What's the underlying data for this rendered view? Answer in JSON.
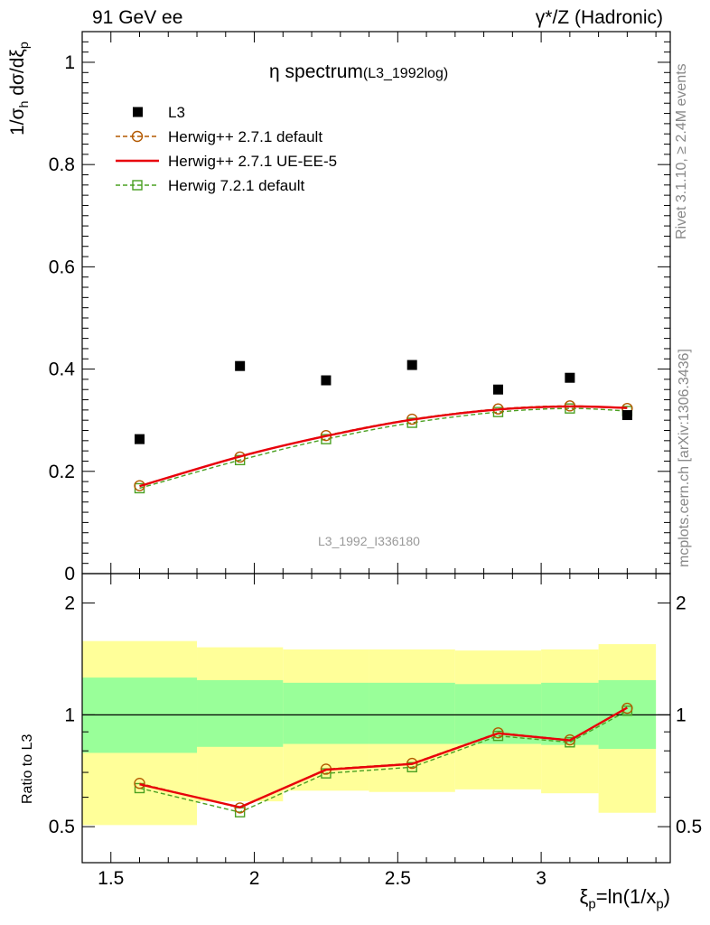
{
  "header": {
    "left": "91 GeV ee",
    "right": "γ*/Z (Hadronic)"
  },
  "side_labels": {
    "rivet": "Rivet 3.1.10, ≥ 2.4M events",
    "mcplots": "mcplots.cern.ch [arXiv:1306.3436]"
  },
  "chart_data": {
    "type": "scatter",
    "title": "η spectrum",
    "title_tag": "(L3_1992log)",
    "watermark": "L3_1992_I336180",
    "ylabel": {
      "pre": "1/σ",
      "s1": "h",
      "mid": " dσ/dξ",
      "s2": "p"
    },
    "xlabel": {
      "a": "ξ",
      "s1": "p",
      "b": "=ln(1/x",
      "s2": "p",
      "c": ")"
    },
    "ratio_ylabel": "Ratio to L3",
    "xlim": [
      1.4,
      3.45
    ],
    "ylim": [
      0,
      1.06
    ],
    "ratio_ylim": [
      0.4,
      2.4
    ],
    "ratio_log": true,
    "x_ticks": [
      "1.5",
      "2",
      "2.5",
      "3"
    ],
    "y_ticks": [
      "0",
      "0.2",
      "0.4",
      "0.6",
      "0.8",
      "1"
    ],
    "ratio_ticks": [
      "0.5",
      "1",
      "2"
    ],
    "legend": [
      "L3",
      "Herwig++ 2.7.1 default",
      "Herwig++ 2.7.1 UE-EE-5",
      "Herwig 7.2.1 default"
    ],
    "x": [
      1.6,
      1.95,
      2.25,
      2.55,
      2.85,
      3.1,
      3.3
    ],
    "data": {
      "name": "L3",
      "color": "#000000",
      "values": [
        0.263,
        0.406,
        0.378,
        0.408,
        0.36,
        0.383,
        0.31
      ]
    },
    "series": [
      {
        "name": "Herwig++ 2.7.1 default",
        "color": "#b35900",
        "marker": "circle",
        "dash": true,
        "values": [
          0.172,
          0.228,
          0.27,
          0.302,
          0.322,
          0.328,
          0.323
        ]
      },
      {
        "name": "Herwig++ 2.7.1 UE-EE-5",
        "color": "#e8000b",
        "marker": "none",
        "dash": false,
        "values": [
          0.171,
          0.229,
          0.269,
          0.301,
          0.321,
          0.327,
          0.324
        ]
      },
      {
        "name": "Herwig 7.2.1 default",
        "color": "#4aa021",
        "marker": "square",
        "dash": true,
        "values": [
          0.167,
          0.222,
          0.263,
          0.295,
          0.316,
          0.323,
          0.318
        ]
      }
    ],
    "bands": [
      {
        "x0": 1.4,
        "x1": 1.8,
        "yellow": [
          0.505,
          1.58
        ],
        "green": [
          0.79,
          1.26
        ]
      },
      {
        "x0": 1.8,
        "x1": 2.1,
        "yellow": [
          0.585,
          1.52
        ],
        "green": [
          0.82,
          1.24
        ]
      },
      {
        "x0": 2.1,
        "x1": 2.4,
        "yellow": [
          0.625,
          1.5
        ],
        "green": [
          0.835,
          1.22
        ]
      },
      {
        "x0": 2.4,
        "x1": 2.7,
        "yellow": [
          0.62,
          1.5
        ],
        "green": [
          0.835,
          1.22
        ]
      },
      {
        "x0": 2.7,
        "x1": 3.0,
        "yellow": [
          0.63,
          1.49
        ],
        "green": [
          0.835,
          1.21
        ]
      },
      {
        "x0": 3.0,
        "x1": 3.2,
        "yellow": [
          0.615,
          1.5
        ],
        "green": [
          0.83,
          1.22
        ]
      },
      {
        "x0": 3.2,
        "x1": 3.4,
        "yellow": [
          0.545,
          1.55
        ],
        "green": [
          0.81,
          1.24
        ]
      }
    ]
  }
}
